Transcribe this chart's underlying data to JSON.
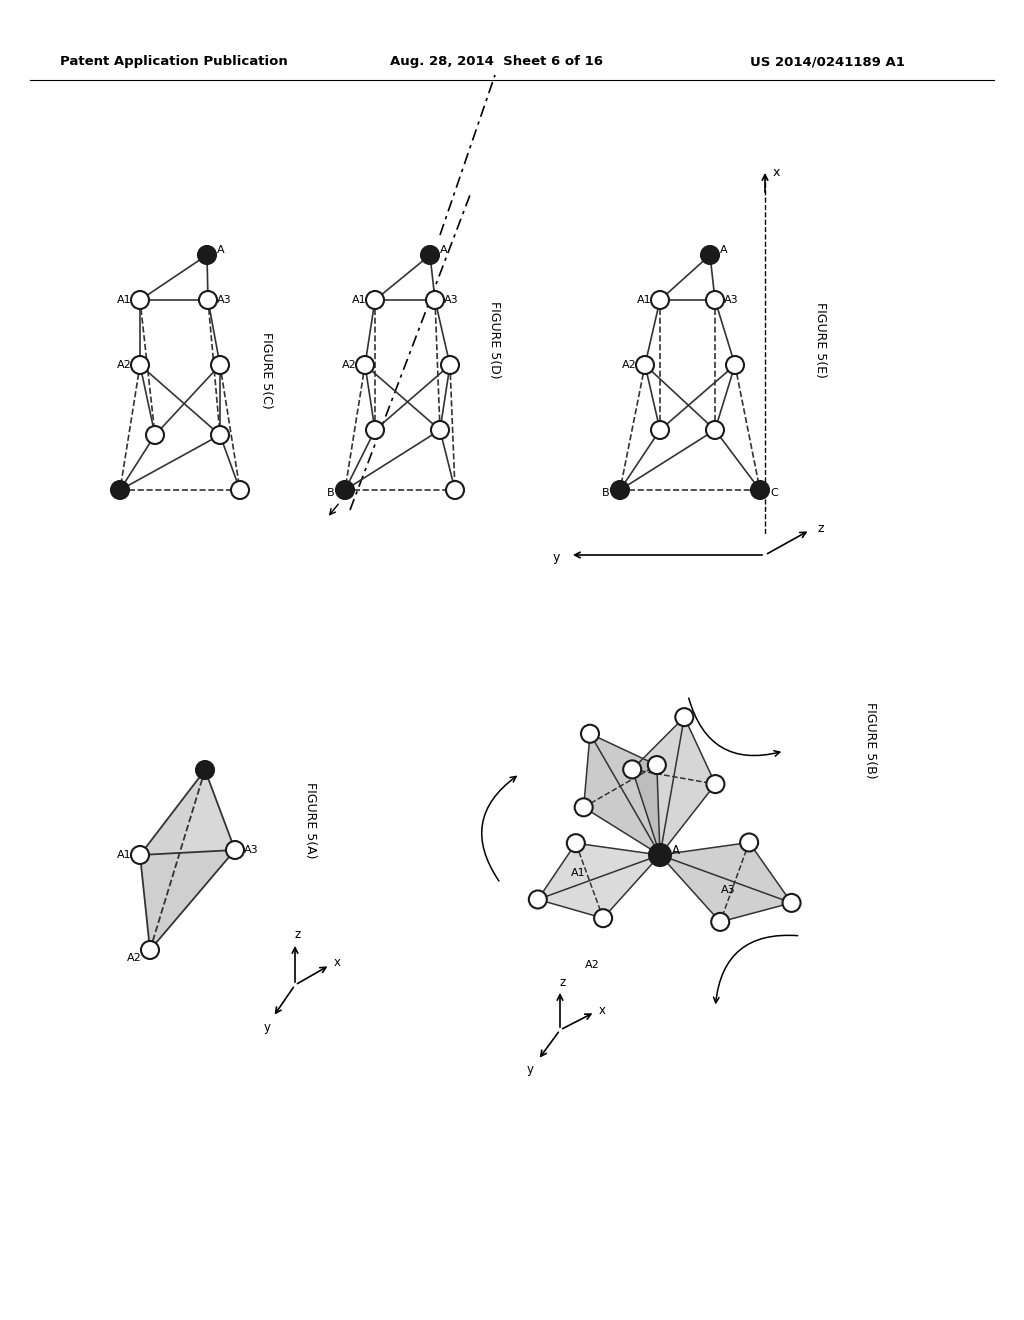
{
  "header_left": "Patent Application Publication",
  "header_mid": "Aug. 28, 2014  Sheet 6 of 16",
  "header_right": "US 2014/0241189 A1",
  "background_color": "#ffffff",
  "node_color_white": "#ffffff",
  "node_color_black": "#1a1a1a",
  "edge_color": "#333333",
  "fig5A_label": "FIGURE 5(A)",
  "fig5B_label": "FIGURE 5(B)",
  "fig5C_label": "FIGURE 5(C)",
  "fig5D_label": "FIGURE 5(D)",
  "fig5E_label": "FIGURE 5(E)"
}
